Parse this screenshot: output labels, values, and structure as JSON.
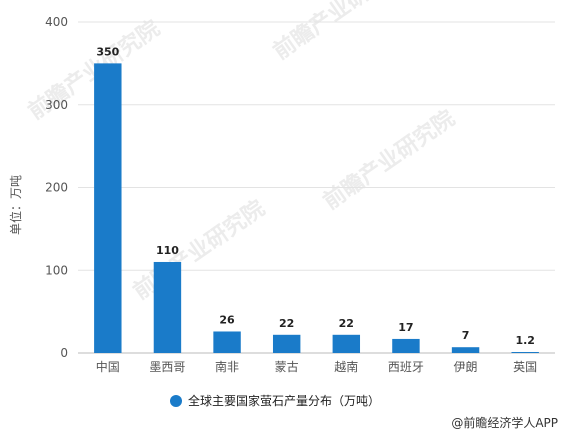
{
  "chart_data": {
    "type": "bar",
    "categories": [
      "中国",
      "墨西哥",
      "南非",
      "蒙古",
      "越南",
      "西班牙",
      "伊朗",
      "英国"
    ],
    "values": [
      350,
      110,
      26,
      22,
      22,
      17,
      7,
      1.2
    ],
    "data_labels": [
      "350",
      "110",
      "26",
      "22",
      "22",
      "17",
      "7",
      "1.2"
    ],
    "ylabel": "单位：万吨",
    "ylim": [
      0,
      400
    ],
    "yticks": [
      "0",
      "100",
      "200",
      "300",
      "400"
    ],
    "ytick_values": [
      0,
      100,
      200,
      300,
      400
    ],
    "grid": true,
    "legend": {
      "label": "全球主要国家萤石产量分布（万吨）",
      "position": "bottom"
    },
    "bar_color": "#1a7bc9"
  },
  "credit": "@前瞻经济学人APP",
  "watermark": "前瞻产业研究院"
}
